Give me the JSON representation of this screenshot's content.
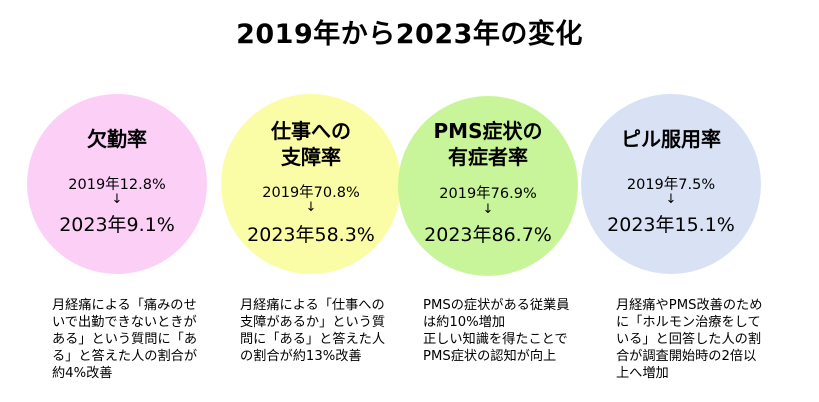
{
  "title": "2019年から2023年の変化",
  "colors": {
    "circle1": "#fcc8f6",
    "circle2": "#fafc9a",
    "circle3": "#c2f48c",
    "circle4": "#d4def2"
  },
  "items": [
    {
      "label": "欠勤率",
      "y2019": "2019年12.8%",
      "arrow": "↓",
      "y2023": "2023年9.1%",
      "note": "月経痛による「痛みのせ\nいで出勤できないときが\nある」という質問に「あ\nる」と答えた人の割合が\n約4%改善"
    },
    {
      "label": "仕事への\n支障率",
      "y2019": "2019年70.8%",
      "arrow": "↓",
      "y2023": "2023年58.3%",
      "note": "月経痛による「仕事への\n支障があるか」という質\n問に「ある」と答えた人\nの割合が約13%改善"
    },
    {
      "label": "PMS症状の\n有症者率",
      "y2019": "2019年76.9%",
      "arrow": "↓",
      "y2023": "2023年86.7%",
      "note": "PMSの症状がある従業員\nは約10%増加\n正しい知識を得たことで\nPMS症状の認知が向上"
    },
    {
      "label": "ピル服用率",
      "y2019": "2019年7.5%",
      "arrow": "↓",
      "y2023": "2023年15.1%",
      "note": "月経痛やPMS改善のため\nに「ホルモン治療をして\nいる」と回答した人の割\n合が調査開始時の2倍以\n上へ増加"
    }
  ]
}
